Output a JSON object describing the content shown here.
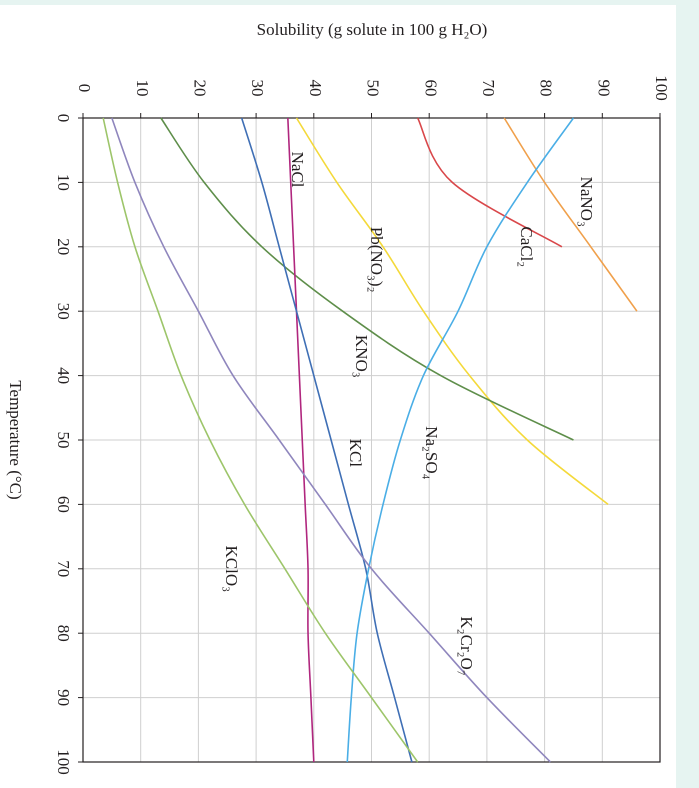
{
  "chart_data": {
    "type": "line",
    "title": "Solubility (g solute in 100 g H₂O)",
    "x_label": "Temperature (°C)",
    "x": [
      0,
      10,
      20,
      30,
      40,
      50,
      60,
      70,
      80,
      90,
      100
    ],
    "xlim": [
      0,
      100
    ],
    "xticks": [
      0,
      10,
      20,
      30,
      40,
      50,
      60,
      70,
      80,
      90,
      100
    ],
    "ylim": [
      0,
      100
    ],
    "yticks": [
      0,
      10,
      20,
      30,
      40,
      50,
      60,
      70,
      80,
      90,
      100
    ],
    "grid": true,
    "series": [
      {
        "name": "NaNO₃",
        "color": "#f0a04b",
        "values": [
          73,
          80,
          88,
          96,
          null,
          null,
          null,
          null,
          null,
          null,
          null
        ]
      },
      {
        "name": "CaCl₂",
        "color": "#d9474a",
        "values": [
          58,
          64,
          83,
          null,
          null,
          null,
          null,
          null,
          null,
          null,
          null
        ]
      },
      {
        "name": "Pb(NO₃)₂",
        "color": "#f4d93a",
        "values": [
          37,
          44,
          52,
          59,
          67,
          77,
          91,
          null,
          null,
          null,
          null
        ]
      },
      {
        "name": "KNO₃",
        "color": "#5e8e4a",
        "values": [
          13.5,
          21,
          31,
          45,
          62,
          85,
          null,
          null,
          null,
          null,
          null
        ]
      },
      {
        "name": "NaCl",
        "color": "#b0267e",
        "values": [
          35.5,
          36,
          36.5,
          37,
          37.5,
          38,
          38.5,
          39,
          39,
          39.5,
          40
        ]
      },
      {
        "name": "KCl",
        "color": "#3f6fb5",
        "values": [
          27.5,
          31,
          34,
          37,
          40,
          43,
          46,
          49,
          51,
          54,
          57
        ]
      },
      {
        "name": "Na₂SO₄",
        "color": "#4aaee6",
        "values": [
          85,
          77,
          70,
          65,
          59,
          55,
          52,
          49.5,
          47.5,
          46.5,
          45.8
        ]
      },
      {
        "name": "K₂Cr₂O₇",
        "color": "#8f86bd",
        "values": [
          5,
          9,
          14,
          20,
          26,
          34,
          42,
          50,
          60,
          70,
          81
        ]
      },
      {
        "name": "KClO₃",
        "color": "#9dc56a",
        "values": [
          3.5,
          6,
          9,
          13,
          17,
          22,
          28,
          35,
          42,
          50,
          58
        ]
      }
    ]
  }
}
